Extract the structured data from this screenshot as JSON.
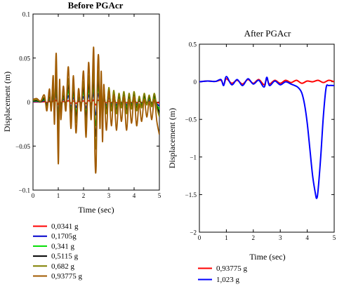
{
  "chart_data": [
    {
      "type": "line",
      "title": "Before PGAcr",
      "xlabel": "Time (sec)",
      "ylabel": "Displacement (m)",
      "xlim": [
        0,
        5
      ],
      "ylim": [
        -0.1,
        0.1
      ],
      "xticks": [
        "0",
        "1",
        "2",
        "3",
        "4",
        "5"
      ],
      "yticks": [
        "0.1",
        "0.05",
        "0",
        "−0.05",
        "−0.1"
      ],
      "ytick_values": [
        0.1,
        0.05,
        0,
        -0.05,
        -0.1
      ],
      "xtick_values": [
        0,
        1,
        2,
        3,
        4,
        5
      ],
      "grid": false,
      "legend_position": "below",
      "series": [
        {
          "name": "0,0341 g",
          "color": "#ff0000",
          "scale": 0.04,
          "x": [],
          "y": []
        },
        {
          "name": "0,1705g",
          "color": "#0000cc",
          "scale": 0.18,
          "x": [],
          "y": []
        },
        {
          "name": "0,341 g",
          "color": "#00dd00",
          "scale": 0.33,
          "x": [],
          "y": []
        },
        {
          "name": "0,5115 g",
          "color": "#000000",
          "scale": 0.48,
          "x": [],
          "y": []
        },
        {
          "name": "0,682 g",
          "color": "#808000",
          "scale": 0.66,
          "x": [],
          "y": []
        },
        {
          "name": "0,93775 g",
          "color": "#a05a00",
          "scale": 1.0,
          "offset_after": 2.8,
          "x": [],
          "y": []
        }
      ],
      "base_shape": {
        "x": [
          0,
          0.15,
          0.3,
          0.45,
          0.55,
          0.65,
          0.72,
          0.8,
          0.85,
          0.92,
          1.0,
          1.05,
          1.1,
          1.2,
          1.3,
          1.4,
          1.5,
          1.6,
          1.7,
          1.8,
          1.9,
          2.0,
          2.1,
          2.2,
          2.3,
          2.4,
          2.45,
          2.5,
          2.55,
          2.6,
          2.65,
          2.7,
          2.75,
          2.8,
          2.9,
          3.0,
          3.1,
          3.2,
          3.3,
          3.4,
          3.5,
          3.6,
          3.7,
          3.8,
          3.9,
          4.0,
          4.1,
          4.2,
          4.3,
          4.4,
          4.5,
          4.6,
          4.7,
          4.8,
          4.9,
          5.0
        ],
        "y": [
          0.003,
          0.004,
          0.001,
          0.008,
          -0.01,
          0.015,
          -0.01,
          0.03,
          -0.025,
          0.055,
          -0.07,
          0.025,
          -0.02,
          0.018,
          -0.01,
          0.04,
          -0.03,
          0.03,
          -0.035,
          0.015,
          -0.01,
          0.035,
          -0.04,
          0.045,
          -0.02,
          0.062,
          -0.06,
          -0.072,
          0.03,
          0.05,
          -0.03,
          0.035,
          -0.045,
          0.02,
          -0.02,
          0.025,
          -0.015,
          0.02,
          -0.02,
          0.015,
          -0.01,
          0.018,
          -0.02,
          0.015,
          -0.012,
          0.018,
          -0.015,
          0.01,
          -0.01,
          0.015,
          -0.005,
          0.012,
          -0.008,
          0.015,
          -0.01,
          -0.025
        ]
      }
    },
    {
      "type": "line",
      "title": "After PGAcr",
      "xlabel": "Time (sec)",
      "ylabel": "Displacement (m)",
      "xlim": [
        0,
        5
      ],
      "ylim": [
        -2,
        0.5
      ],
      "xticks": [
        "0",
        "1",
        "2",
        "3",
        "4",
        "5"
      ],
      "xtick_values": [
        0,
        1,
        2,
        3,
        4,
        5
      ],
      "yticks": [
        "0.5",
        "0",
        "−0.5",
        "−1",
        "−1.5",
        "−2"
      ],
      "ytick_values": [
        0.5,
        0,
        -0.5,
        -1,
        -1.5,
        -2
      ],
      "grid": false,
      "legend_position": "below",
      "series": [
        {
          "name": "0,93775 g",
          "color": "#ff0000",
          "x": [
            0,
            0.3,
            0.6,
            0.8,
            0.9,
            1.0,
            1.2,
            1.4,
            1.6,
            1.8,
            2.0,
            2.2,
            2.4,
            2.5,
            2.6,
            2.8,
            3.0,
            3.2,
            3.4,
            3.6,
            3.8,
            4.0,
            4.2,
            4.4,
            4.6,
            4.8,
            5.0
          ],
          "y": [
            0.0,
            0.01,
            0.005,
            0.02,
            -0.04,
            0.04,
            -0.02,
            0.02,
            -0.03,
            0.03,
            -0.02,
            0.03,
            -0.04,
            0.04,
            -0.03,
            0.02,
            -0.02,
            0.02,
            -0.01,
            0.02,
            -0.02,
            0.01,
            0.0,
            0.02,
            -0.01,
            0.02,
            0.0
          ]
        },
        {
          "name": "1,023 g",
          "color": "#0000ff",
          "x": [
            0,
            0.3,
            0.6,
            0.8,
            0.9,
            1.0,
            1.2,
            1.4,
            1.6,
            1.8,
            2.0,
            2.2,
            2.4,
            2.5,
            2.6,
            2.8,
            3.0,
            3.2,
            3.4,
            3.6,
            3.7,
            3.8,
            3.9,
            4.0,
            4.1,
            4.2,
            4.3,
            4.35,
            4.4,
            4.5,
            4.6,
            4.7,
            4.8,
            5.0
          ],
          "y": [
            0.0,
            0.01,
            0.005,
            0.03,
            -0.05,
            0.07,
            -0.04,
            0.03,
            -0.05,
            0.04,
            -0.03,
            0.02,
            -0.07,
            0.06,
            -0.05,
            0.01,
            -0.04,
            0.0,
            -0.03,
            -0.06,
            -0.09,
            -0.15,
            -0.3,
            -0.55,
            -0.9,
            -1.25,
            -1.48,
            -1.55,
            -1.45,
            -1.0,
            -0.45,
            -0.08,
            -0.05,
            -0.05
          ]
        }
      ]
    }
  ]
}
